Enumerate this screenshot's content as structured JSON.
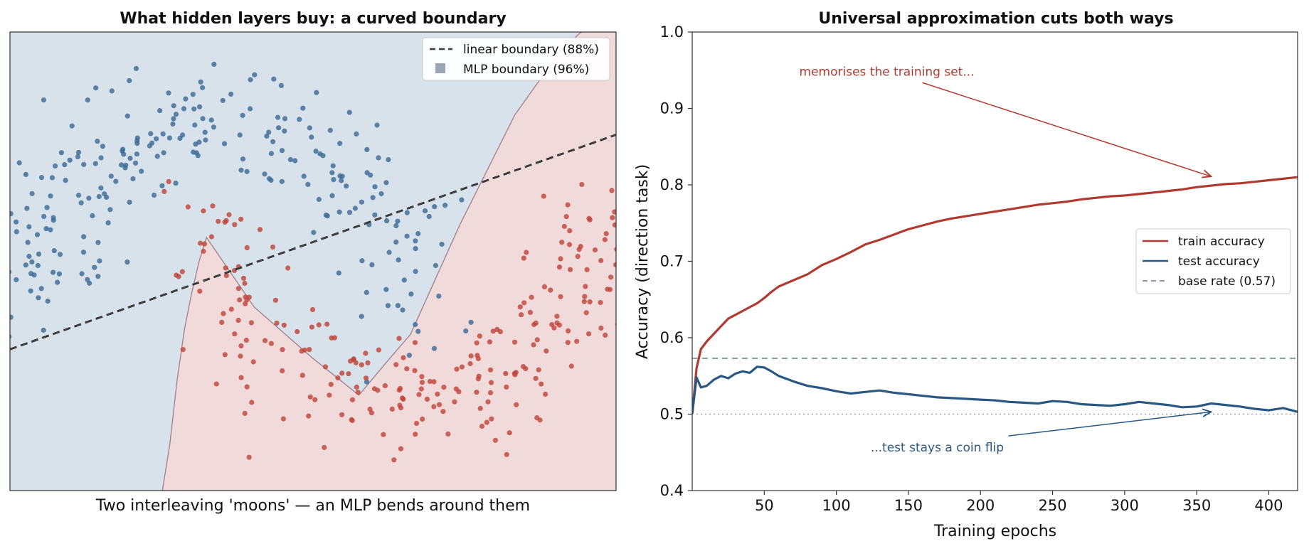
{
  "chart_data": [
    {
      "type": "scatter",
      "title": "What hidden layers buy: a curved boundary",
      "xlabel": "Two interleaving 'moons' — an MLP bends around them",
      "ylabel": "",
      "axes_visible": false,
      "xlim": [
        -1.15,
        2.15
      ],
      "ylim": [
        -1.0,
        1.5
      ],
      "legend_position": "top-right",
      "colors": {
        "class_a": "#3d6a96",
        "class_b": "#c0453b",
        "region_a": "#d7e2ea",
        "region_b": "#f1dada",
        "linear_line": "#3c3c3c",
        "mlp_edge": "#a07e88"
      },
      "series": [
        {
          "name": "",
          "class": "blue",
          "n": 250
        },
        {
          "name": "",
          "class": "red",
          "n": 250
        }
      ],
      "boundaries": [
        {
          "name": "linear boundary (88%)",
          "style": "dashed",
          "x": [
            -1.15,
            2.15
          ],
          "y": [
            -0.23,
            0.94
          ]
        },
        {
          "name": "MLP boundary (96%)",
          "style": "filled-region",
          "x": [
            -0.32,
            -0.28,
            -0.24,
            -0.2,
            -0.16,
            -0.12,
            -0.08,
            0.18,
            0.5,
            0.75,
            0.9,
            1.03,
            1.3,
            1.6,
            1.85,
            1.96,
            2.15
          ],
          "y": [
            -1.0,
            -0.75,
            -0.4,
            -0.12,
            0.08,
            0.25,
            0.38,
            0.0,
            -0.28,
            -0.48,
            -0.3,
            -0.15,
            0.45,
            1.05,
            1.4,
            1.5,
            1.5
          ]
        }
      ],
      "legend": [
        "linear boundary (88%)",
        "MLP boundary (96%)"
      ]
    },
    {
      "type": "line",
      "title": "Universal approximation cuts both ways",
      "xlabel": "Training epochs",
      "ylabel": "Accuracy (direction task)",
      "xlim": [
        0,
        420
      ],
      "ylim": [
        0.4,
        1.0
      ],
      "xticks": [
        50,
        100,
        150,
        200,
        250,
        300,
        350,
        400
      ],
      "yticks": [
        "0.4",
        "0.5",
        "0.6",
        "0.7",
        "0.8",
        "0.9",
        "1.0"
      ],
      "grid": false,
      "legend_position": "center-right",
      "series": [
        {
          "name": "train accuracy",
          "color": "#b03a30",
          "x": [
            0,
            3,
            6,
            10,
            15,
            20,
            25,
            30,
            35,
            40,
            45,
            50,
            55,
            60,
            70,
            80,
            90,
            100,
            110,
            120,
            130,
            140,
            150,
            160,
            170,
            180,
            190,
            200,
            210,
            220,
            230,
            240,
            250,
            260,
            270,
            280,
            290,
            300,
            310,
            320,
            330,
            340,
            350,
            360,
            370,
            380,
            390,
            400,
            410,
            420
          ],
          "y": [
            0.5,
            0.56,
            0.585,
            0.595,
            0.605,
            0.615,
            0.625,
            0.63,
            0.635,
            0.64,
            0.645,
            0.652,
            0.66,
            0.667,
            0.675,
            0.683,
            0.695,
            0.703,
            0.712,
            0.722,
            0.728,
            0.735,
            0.742,
            0.747,
            0.752,
            0.756,
            0.759,
            0.762,
            0.765,
            0.768,
            0.771,
            0.774,
            0.776,
            0.778,
            0.781,
            0.783,
            0.785,
            0.786,
            0.788,
            0.79,
            0.792,
            0.794,
            0.797,
            0.799,
            0.801,
            0.802,
            0.804,
            0.806,
            0.808,
            0.81
          ]
        },
        {
          "name": "test accuracy",
          "color": "#2b5882",
          "x": [
            0,
            3,
            6,
            10,
            15,
            20,
            25,
            30,
            35,
            40,
            45,
            50,
            55,
            60,
            70,
            80,
            90,
            100,
            110,
            120,
            130,
            140,
            150,
            160,
            170,
            180,
            190,
            200,
            210,
            220,
            230,
            240,
            250,
            260,
            270,
            280,
            290,
            300,
            310,
            320,
            330,
            340,
            350,
            360,
            370,
            380,
            390,
            400,
            410,
            420
          ],
          "y": [
            0.5,
            0.548,
            0.535,
            0.537,
            0.545,
            0.55,
            0.547,
            0.553,
            0.556,
            0.554,
            0.562,
            0.561,
            0.556,
            0.55,
            0.543,
            0.537,
            0.534,
            0.53,
            0.527,
            0.529,
            0.531,
            0.528,
            0.526,
            0.524,
            0.522,
            0.521,
            0.52,
            0.519,
            0.518,
            0.516,
            0.515,
            0.514,
            0.517,
            0.516,
            0.513,
            0.512,
            0.511,
            0.513,
            0.516,
            0.514,
            0.512,
            0.509,
            0.51,
            0.514,
            0.512,
            0.51,
            0.507,
            0.505,
            0.508,
            0.503
          ]
        },
        {
          "name": "base rate (0.57)",
          "color": "#8c9bb0",
          "style": "dashed",
          "x": [
            0,
            420
          ],
          "y": [
            0.573,
            0.573
          ]
        },
        {
          "name": "",
          "color": "#aaaaaa",
          "style": "dotted",
          "x": [
            0,
            420
          ],
          "y": [
            0.5,
            0.5
          ]
        }
      ],
      "annotations": [
        {
          "text": "memorises the training set...",
          "color": "#b03a30",
          "text_at": [
            135,
            0.943
          ],
          "arrow_to": [
            360,
            0.811
          ]
        },
        {
          "text": "...test stays a coin flip",
          "color": "#2b5882",
          "text_at": [
            170,
            0.451
          ],
          "arrow_to": [
            360,
            0.503
          ]
        }
      ]
    }
  ]
}
